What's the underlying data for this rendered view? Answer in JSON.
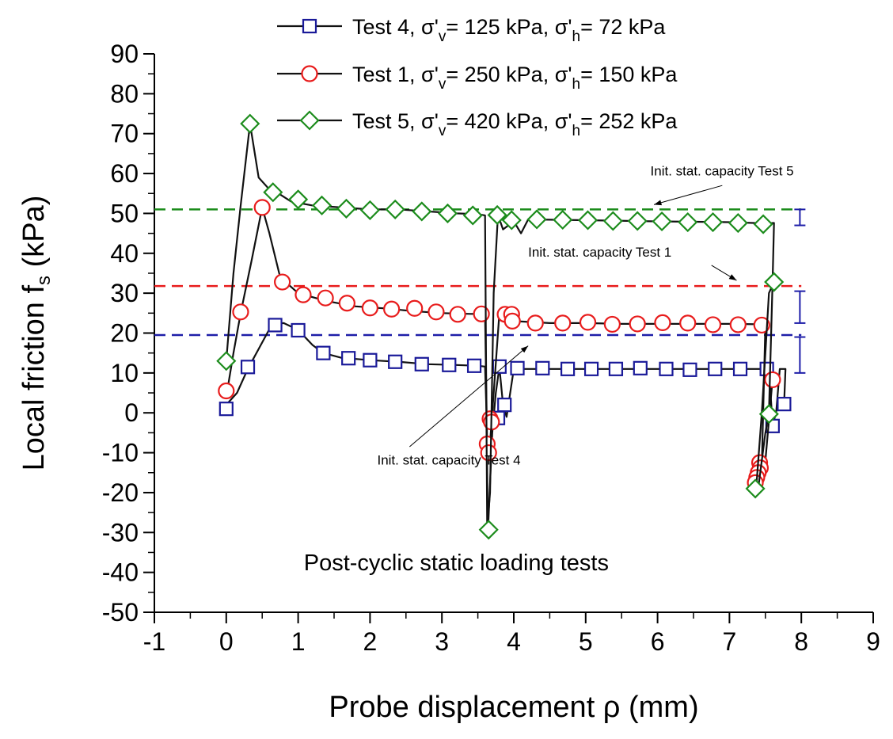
{
  "chart_data": {
    "type": "line",
    "xlabel": "Probe displacement ρ (mm)",
    "ylabel_main": "Local friction f",
    "ylabel_sub": "s",
    "ylabel_unit": " (kPa)",
    "xlim": [
      -1,
      9
    ],
    "ylim": [
      -50,
      90
    ],
    "xticks": [
      -1,
      0,
      1,
      2,
      3,
      4,
      5,
      6,
      7,
      8,
      9
    ],
    "yticks": [
      -50,
      -40,
      -30,
      -20,
      -10,
      0,
      10,
      20,
      30,
      40,
      50,
      60,
      70,
      80,
      90
    ],
    "grid": false,
    "legend_position": "top",
    "inside_title": "Post-cyclic static loading tests",
    "series": [
      {
        "legend": {
          "pre": "Test 4, σ'",
          "s1": "v",
          "mid": "= 125 kPa, σ'",
          "s2": "h",
          "post": "= 72 kPa"
        },
        "marker": "square",
        "color": "#1a1a99",
        "capacity": 19.5,
        "line": [
          [
            0,
            2
          ],
          [
            0.15,
            5
          ],
          [
            0.3,
            11
          ],
          [
            0.45,
            16
          ],
          [
            0.6,
            21
          ],
          [
            0.7,
            22.3
          ],
          [
            0.8,
            22.5
          ],
          [
            1.0,
            20.8
          ],
          [
            1.2,
            17
          ],
          [
            1.35,
            15
          ],
          [
            1.6,
            13.8
          ],
          [
            2.0,
            13.2
          ],
          [
            2.4,
            12.8
          ],
          [
            2.8,
            12.2
          ],
          [
            3.2,
            12
          ],
          [
            3.5,
            11.8
          ],
          [
            3.6,
            11.6
          ],
          [
            3.62,
            0
          ],
          [
            3.64,
            -30
          ],
          [
            3.7,
            -5
          ],
          [
            3.75,
            5
          ],
          [
            3.8,
            11.5
          ],
          [
            3.85,
            2
          ],
          [
            3.9,
            -1
          ],
          [
            4.0,
            11
          ],
          [
            4.5,
            11
          ],
          [
            5.0,
            11
          ],
          [
            5.5,
            11
          ],
          [
            6.0,
            11
          ],
          [
            6.5,
            11
          ],
          [
            7.0,
            11
          ],
          [
            7.3,
            11
          ],
          [
            7.55,
            11
          ],
          [
            7.6,
            -3
          ],
          [
            7.65,
            0
          ],
          [
            7.7,
            11
          ],
          [
            7.78,
            11
          ],
          [
            7.76,
            2
          ]
        ],
        "markers": [
          [
            0,
            1
          ],
          [
            0.3,
            11.5
          ],
          [
            0.68,
            22
          ],
          [
            1.0,
            20.7
          ],
          [
            1.35,
            15
          ],
          [
            1.7,
            13.7
          ],
          [
            2.0,
            13.2
          ],
          [
            2.35,
            12.8
          ],
          [
            2.72,
            12.2
          ],
          [
            3.1,
            12
          ],
          [
            3.45,
            11.8
          ],
          [
            3.78,
            -1.3
          ],
          [
            3.87,
            2
          ],
          [
            3.8,
            11.6
          ],
          [
            4.05,
            11.2
          ],
          [
            4.4,
            11.2
          ],
          [
            4.75,
            11
          ],
          [
            5.08,
            11
          ],
          [
            5.42,
            11
          ],
          [
            5.76,
            11.2
          ],
          [
            6.12,
            11
          ],
          [
            6.45,
            10.8
          ],
          [
            6.8,
            11
          ],
          [
            7.15,
            11
          ],
          [
            7.52,
            11
          ],
          [
            7.6,
            -3.3
          ],
          [
            7.76,
            2.2
          ]
        ]
      },
      {
        "legend": {
          "pre": "Test 1, σ'",
          "s1": "v",
          "mid": "= 250 kPa, σ'",
          "s2": "h",
          "post": "= 150 kPa"
        },
        "marker": "circle",
        "color": "#e81c1c",
        "capacity": 31.8,
        "line": [
          [
            0,
            4
          ],
          [
            0.1,
            15
          ],
          [
            0.2,
            25
          ],
          [
            0.35,
            38
          ],
          [
            0.5,
            51.5
          ],
          [
            0.6,
            45
          ],
          [
            0.75,
            34
          ],
          [
            1.0,
            30
          ],
          [
            1.4,
            28
          ],
          [
            1.8,
            26.7
          ],
          [
            2.2,
            26.2
          ],
          [
            2.6,
            25.5
          ],
          [
            3.0,
            25
          ],
          [
            3.4,
            24.8
          ],
          [
            3.6,
            24.8
          ],
          [
            3.63,
            -9
          ],
          [
            3.66,
            -10
          ],
          [
            3.7,
            0
          ],
          [
            3.8,
            25
          ],
          [
            3.9,
            26
          ],
          [
            3.92,
            24.5
          ],
          [
            4.0,
            23
          ],
          [
            4.5,
            22.5
          ],
          [
            5.0,
            22.5
          ],
          [
            5.5,
            22.3
          ],
          [
            6.0,
            22.3
          ],
          [
            6.5,
            22.3
          ],
          [
            7.0,
            22.3
          ],
          [
            7.4,
            22.2
          ],
          [
            7.5,
            22
          ],
          [
            7.45,
            -13
          ],
          [
            7.42,
            -16
          ],
          [
            7.4,
            -18
          ],
          [
            7.5,
            -12
          ],
          [
            7.6,
            8.5
          ],
          [
            7.58,
            10
          ]
        ],
        "markers": [
          [
            0,
            5.5
          ],
          [
            0.2,
            25.3
          ],
          [
            0.5,
            51.5
          ],
          [
            0.78,
            32.8
          ],
          [
            1.07,
            29.6
          ],
          [
            1.38,
            28.8
          ],
          [
            1.68,
            27.5
          ],
          [
            2.0,
            26.3
          ],
          [
            2.3,
            26
          ],
          [
            2.62,
            26.2
          ],
          [
            2.92,
            25.3
          ],
          [
            3.22,
            24.7
          ],
          [
            3.55,
            24.8
          ],
          [
            3.88,
            24.7
          ],
          [
            3.97,
            24.7
          ],
          [
            3.98,
            23
          ],
          [
            3.63,
            -7.8
          ],
          [
            3.65,
            -10
          ],
          [
            3.67,
            -1.5
          ],
          [
            3.69,
            -2.3
          ],
          [
            4.3,
            22.5
          ],
          [
            4.68,
            22.5
          ],
          [
            5.03,
            22.7
          ],
          [
            5.37,
            22.2
          ],
          [
            5.72,
            22.3
          ],
          [
            6.07,
            22.6
          ],
          [
            6.42,
            22.5
          ],
          [
            6.77,
            22.1
          ],
          [
            7.12,
            22.1
          ],
          [
            7.45,
            22
          ],
          [
            7.42,
            -12.5
          ],
          [
            7.43,
            -13.8
          ],
          [
            7.4,
            -15
          ],
          [
            7.38,
            -16.2
          ],
          [
            7.36,
            -17.5
          ],
          [
            7.6,
            8.3
          ]
        ]
      },
      {
        "legend": {
          "pre": "Test 5, σ'",
          "s1": "v",
          "mid": "= 420 kPa, σ'",
          "s2": "h",
          "post": "= 252 kPa"
        },
        "marker": "diamond",
        "color": "#1c8c1c",
        "capacity": 51,
        "line": [
          [
            0,
            13
          ],
          [
            0.1,
            35
          ],
          [
            0.2,
            52
          ],
          [
            0.33,
            72.5
          ],
          [
            0.45,
            59
          ],
          [
            0.6,
            56
          ],
          [
            0.7,
            55.3
          ],
          [
            0.9,
            53
          ],
          [
            1.2,
            52
          ],
          [
            1.6,
            51.5
          ],
          [
            2.0,
            51
          ],
          [
            2.4,
            51
          ],
          [
            2.8,
            50.5
          ],
          [
            3.2,
            50
          ],
          [
            3.5,
            49.8
          ],
          [
            3.6,
            49.5
          ],
          [
            3.63,
            -29
          ],
          [
            3.67,
            -20
          ],
          [
            3.72,
            30
          ],
          [
            3.78,
            49.6
          ],
          [
            3.85,
            46
          ],
          [
            4.0,
            48
          ],
          [
            4.1,
            45
          ],
          [
            4.2,
            48.5
          ],
          [
            5.0,
            48.3
          ],
          [
            6.0,
            48
          ],
          [
            7.0,
            47.8
          ],
          [
            7.5,
            47.5
          ],
          [
            7.62,
            47.6
          ],
          [
            7.6,
            33
          ],
          [
            7.55,
            0
          ],
          [
            7.5,
            -5
          ],
          [
            7.4,
            -19
          ],
          [
            7.38,
            -17
          ],
          [
            7.45,
            0
          ],
          [
            7.55,
            30
          ],
          [
            7.62,
            32.8
          ]
        ],
        "markers": [
          [
            0,
            13
          ],
          [
            0.33,
            72.5
          ],
          [
            0.65,
            55.3
          ],
          [
            1.0,
            53.5
          ],
          [
            1.33,
            52
          ],
          [
            1.67,
            51.2
          ],
          [
            2.0,
            50.8
          ],
          [
            2.35,
            51
          ],
          [
            2.72,
            50.5
          ],
          [
            3.08,
            50
          ],
          [
            3.43,
            49.5
          ],
          [
            3.77,
            49.6
          ],
          [
            3.97,
            48.3
          ],
          [
            4.32,
            48.5
          ],
          [
            4.68,
            48.4
          ],
          [
            5.03,
            48.3
          ],
          [
            5.38,
            48.1
          ],
          [
            5.72,
            48.1
          ],
          [
            6.06,
            48
          ],
          [
            6.42,
            47.8
          ],
          [
            6.77,
            47.8
          ],
          [
            7.12,
            47.6
          ],
          [
            7.47,
            47.3
          ],
          [
            3.65,
            -29.3
          ],
          [
            7.55,
            -0.3
          ],
          [
            7.36,
            -19
          ],
          [
            7.62,
            32.8
          ]
        ]
      }
    ],
    "annotations": [
      {
        "label": "Init. stat. capacity Test 5",
        "text_at": [
          5.9,
          59.5
        ],
        "arrow_from": [
          6.9,
          57
        ],
        "arrow_to": [
          5.95,
          52.2
        ]
      },
      {
        "label": "Init. stat. capacity Test 1",
        "text_at": [
          4.2,
          39.2
        ],
        "arrow_from": [
          6.75,
          37
        ],
        "arrow_to": [
          7.1,
          33.2
        ]
      },
      {
        "label": "Init. stat. capacity Test 4",
        "text_at": [
          2.1,
          -13
        ],
        "arrow_from": [
          2.55,
          -8.5
        ],
        "arrow_to": [
          4.2,
          16.8
        ]
      }
    ],
    "error_bars": [
      {
        "x": 7.98,
        "low": 47,
        "high": 51,
        "cap": 7
      },
      {
        "x": 7.98,
        "low": 22.5,
        "high": 30.5,
        "cap": 7
      },
      {
        "x": 7.98,
        "low": 10,
        "high": 19,
        "cap": 7
      }
    ]
  }
}
